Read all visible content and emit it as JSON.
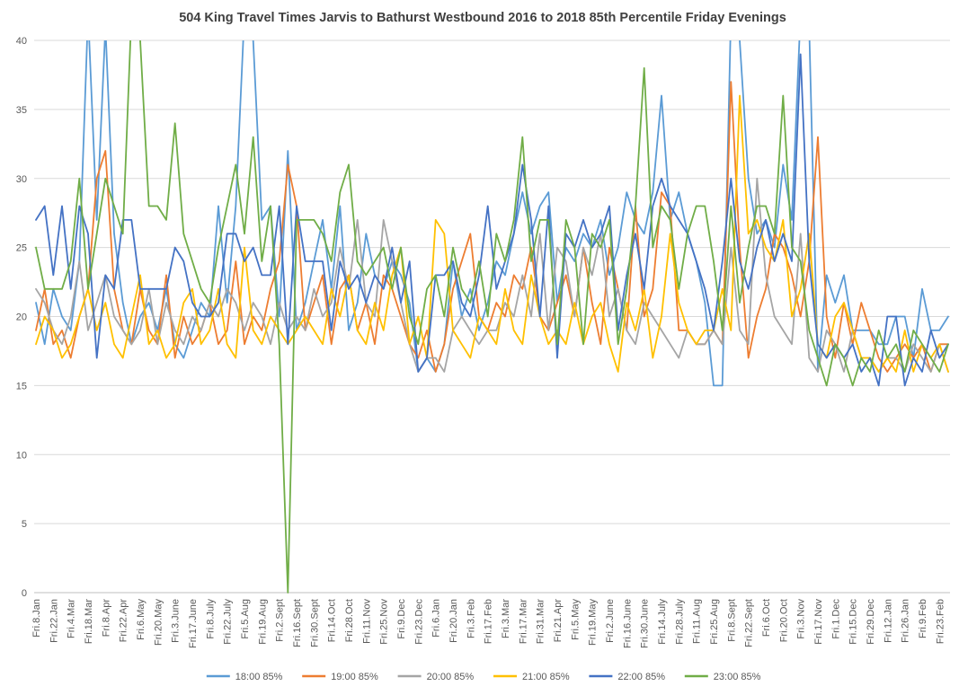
{
  "chart_data": {
    "type": "line",
    "title": "504 King Travel Times Jarvis to Bathurst Westbound 2016 to 2018 85th Percentile Friday Evenings",
    "xlabel": "",
    "ylabel": "",
    "ylim": [
      0,
      40
    ],
    "ytick_step": 5,
    "grid": "horizontal",
    "legend_position": "bottom",
    "label_every_n_points": 2,
    "x_labels": [
      "Fri.8.Jan",
      "Fri.22.Jan",
      "Fri.4.Mar",
      "Fri.18.Mar",
      "Fri.8.Apr",
      "Fri.22.Apr",
      "Fri.6.May",
      "Fri.20.May",
      "Fri.3.June",
      "Fri.17.June",
      "Fri.8.July",
      "Fri.22.July",
      "Fri.5.Aug",
      "Fri.19.Aug",
      "Fri.2.Sept",
      "Fri.16.Sept",
      "Fri.30.Sept",
      "Fri.14.Oct",
      "Fri.28.Oct",
      "Fri.11.Nov",
      "Fri.25.Nov",
      "Fri.9.Dec",
      "Fri.23.Dec",
      "Fri.6.Jan",
      "Fri.20.Jan",
      "Fri.3.Feb",
      "Fri.17.Feb",
      "Fri.3.Mar",
      "Fri.17.Mar",
      "Fri.31.Mar",
      "Fri.21.Apr",
      "Fri.5.May",
      "Fri.19.May",
      "Fri.2.June",
      "Fri.16.June",
      "Fri.30.June",
      "Fri.14.July",
      "Fri.28.July",
      "Fri.11.Aug",
      "Fri.25.Aug",
      "Fri.8.Sept",
      "Fri.22.Sept",
      "Fri.6.Oct",
      "Fri.20.Oct",
      "Fri.3.Nov",
      "Fri.17.Nov",
      "Fri.1.Dec",
      "Fri.15.Dec",
      "Fri.29.Dec",
      "Fri.12.Jan",
      "Fri.26.Jan",
      "Fri.9.Feb",
      "Fri.23.Feb"
    ],
    "series": [
      {
        "name": "18:00 85%",
        "color": "#5B9BD5",
        "values": [
          21,
          18,
          22,
          20,
          19,
          24,
          42,
          27,
          41,
          26,
          21,
          18,
          20,
          21,
          19,
          22,
          18,
          17,
          19,
          21,
          20,
          28,
          21,
          28,
          42,
          40,
          27,
          28,
          20,
          32,
          19,
          21,
          24,
          27,
          22,
          28,
          19,
          21,
          26,
          23,
          22,
          24,
          23,
          21,
          16,
          17,
          16,
          18,
          24,
          20,
          22,
          19,
          21,
          24,
          23,
          26,
          29,
          26,
          28,
          29,
          21,
          25,
          24,
          26,
          25,
          27,
          23,
          25,
          29,
          27,
          26,
          29,
          36,
          27,
          29,
          26,
          24,
          21,
          15,
          15,
          42,
          40,
          30,
          26,
          27,
          25,
          31,
          27,
          42,
          41,
          16,
          23,
          21,
          23,
          19,
          19,
          19,
          18,
          18,
          20,
          20,
          17,
          22,
          19,
          19,
          20
        ]
      },
      {
        "name": "19:00 85%",
        "color": "#ED7D31",
        "values": [
          19,
          22,
          18,
          19,
          17,
          20,
          22,
          30,
          32,
          22,
          19,
          18,
          22,
          19,
          18,
          23,
          17,
          20,
          18,
          19,
          21,
          18,
          19,
          24,
          18,
          20,
          19,
          22,
          24,
          31,
          28,
          19,
          21,
          23,
          18,
          22,
          23,
          19,
          21,
          18,
          23,
          22,
          20,
          18,
          17,
          19,
          16,
          18,
          22,
          24,
          26,
          20,
          19,
          21,
          20,
          23,
          22,
          25,
          20,
          19,
          21,
          23,
          20,
          25,
          21,
          18,
          25,
          22,
          19,
          28,
          20,
          22,
          29,
          28,
          19,
          19,
          18,
          18,
          19,
          18,
          37,
          25,
          17,
          20,
          22,
          26,
          25,
          23,
          20,
          24,
          33,
          20,
          17,
          21,
          18,
          21,
          19,
          17,
          16,
          17,
          18,
          17,
          18,
          16,
          18,
          18
        ]
      },
      {
        "name": "20:00 85%",
        "color": "#A5A5A5",
        "values": [
          22,
          21,
          19,
          18,
          20,
          24,
          19,
          21,
          23,
          20,
          19,
          18,
          19,
          22,
          18,
          21,
          19,
          18,
          20,
          19,
          21,
          20,
          22,
          21,
          19,
          21,
          20,
          18,
          21,
          19,
          20,
          19,
          22,
          20,
          21,
          25,
          22,
          27,
          21,
          20,
          27,
          24,
          21,
          18,
          16,
          17,
          17,
          16,
          19,
          20,
          19,
          18,
          19,
          19,
          21,
          20,
          23,
          20,
          26,
          19,
          25,
          24,
          20,
          25,
          23,
          26,
          20,
          22,
          19,
          18,
          21,
          20,
          19,
          18,
          17,
          19,
          18,
          18,
          19,
          18,
          25,
          19,
          18,
          30,
          23,
          20,
          19,
          18,
          26,
          17,
          16,
          19,
          18,
          16,
          19,
          17,
          17,
          16,
          17,
          17,
          16,
          18,
          17,
          16,
          18,
          16
        ]
      },
      {
        "name": "21:00 85%",
        "color": "#FFC000",
        "values": [
          18,
          20,
          19,
          17,
          18,
          20,
          22,
          19,
          21,
          18,
          17,
          20,
          23,
          18,
          19,
          17,
          18,
          21,
          22,
          18,
          19,
          22,
          18,
          17,
          25,
          19,
          18,
          20,
          19,
          18,
          19,
          20,
          19,
          18,
          22,
          20,
          23,
          19,
          18,
          21,
          19,
          23,
          25,
          18,
          20,
          17,
          27,
          26,
          19,
          18,
          17,
          20,
          19,
          18,
          22,
          19,
          18,
          23,
          20,
          18,
          19,
          18,
          21,
          18,
          20,
          21,
          18,
          16,
          21,
          19,
          22,
          17,
          20,
          26,
          21,
          19,
          18,
          19,
          19,
          22,
          19,
          36,
          26,
          27,
          25,
          24,
          27,
          20,
          22,
          26,
          18,
          17,
          20,
          21,
          19,
          17,
          17,
          16,
          17,
          16,
          19,
          16,
          18,
          17,
          18,
          16
        ]
      },
      {
        "name": "22:00 85%",
        "color": "#4472C4",
        "values": [
          27,
          28,
          23,
          28,
          22,
          28,
          26,
          17,
          23,
          22,
          27,
          27,
          22,
          22,
          22,
          22,
          25,
          24,
          21,
          20,
          20,
          21,
          26,
          26,
          24,
          25,
          23,
          23,
          28,
          18,
          28,
          24,
          24,
          24,
          19,
          24,
          22,
          23,
          21,
          23,
          22,
          25,
          21,
          24,
          16,
          17,
          23,
          23,
          24,
          21,
          20,
          23,
          28,
          22,
          24,
          26,
          31,
          27,
          20,
          28,
          17,
          26,
          25,
          27,
          25,
          26,
          28,
          19,
          23,
          26,
          22,
          28,
          30,
          28,
          27,
          26,
          24,
          22,
          19,
          24,
          30,
          24,
          22,
          25,
          27,
          24,
          26,
          24,
          39,
          24,
          18,
          17,
          18,
          17,
          18,
          16,
          17,
          15,
          20,
          20,
          15,
          17,
          16,
          19,
          17,
          18
        ]
      },
      {
        "name": "23:00 85%",
        "color": "#70AD47",
        "values": [
          25,
          22,
          22,
          22,
          24,
          30,
          22,
          26,
          30,
          28,
          26,
          42,
          40,
          28,
          28,
          27,
          34,
          26,
          24,
          22,
          21,
          25,
          28,
          31,
          26,
          33,
          24,
          28,
          18,
          0,
          27,
          27,
          27,
          26,
          24,
          29,
          31,
          24,
          23,
          24,
          25,
          22,
          25,
          20,
          18,
          22,
          23,
          20,
          25,
          22,
          21,
          24,
          20,
          26,
          24,
          27,
          33,
          24,
          27,
          27,
          18,
          27,
          25,
          18,
          26,
          25,
          27,
          18,
          22,
          28,
          38,
          25,
          28,
          27,
          22,
          26,
          28,
          28,
          24,
          19,
          28,
          21,
          25,
          28,
          28,
          26,
          36,
          25,
          24,
          19,
          17,
          15,
          18,
          17,
          15,
          17,
          16,
          19,
          17,
          18,
          16,
          19,
          18,
          17,
          16,
          18
        ]
      }
    ],
    "legend": [
      "18:00 85%",
      "19:00 85%",
      "20:00 85%",
      "21:00 85%",
      "22:00 85%",
      "23:00 85%"
    ],
    "colors": {
      "grid": "#D9D9D9",
      "axis": "#BFBFBF",
      "tick_label": "#595959",
      "title": "#404040"
    }
  }
}
